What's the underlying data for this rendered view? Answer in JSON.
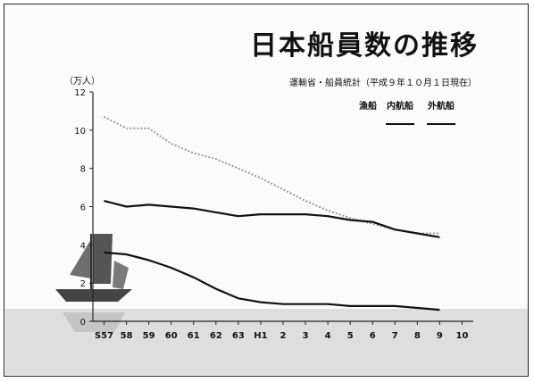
{
  "title": "日本船員数の推移",
  "source": "運輸省・船員統計（平成９年１０月１日現在）",
  "chart_data": {
    "type": "line",
    "title": "日本船員数の推移",
    "ylabel": "（万人）",
    "xlabel": "",
    "ylim": [
      0,
      12
    ],
    "yticks": [
      "0",
      "2",
      "4",
      "6",
      "8",
      "10",
      "12"
    ],
    "categories": [
      "S57",
      "58",
      "59",
      "60",
      "61",
      "62",
      "63",
      "H1",
      "2",
      "3",
      "4",
      "5",
      "6",
      "7",
      "8",
      "9",
      "10"
    ],
    "legend_position": "top-right",
    "series": [
      {
        "name": "漁船",
        "color": "#9a9a9a",
        "style": "dotted",
        "values": [
          10.7,
          10.1,
          10.1,
          9.3,
          8.8,
          8.5,
          8.0,
          7.5,
          6.9,
          6.3,
          5.8,
          5.4,
          5.1,
          4.8,
          4.6,
          4.6,
          null
        ]
      },
      {
        "name": "内航船",
        "color": "#111111",
        "style": "solid",
        "values": [
          6.3,
          6.0,
          6.1,
          6.0,
          5.9,
          5.7,
          5.5,
          5.6,
          5.6,
          5.6,
          5.5,
          5.3,
          5.2,
          4.8,
          4.6,
          4.4,
          null
        ]
      },
      {
        "name": "外航船",
        "color": "#111111",
        "style": "solid",
        "values": [
          3.6,
          3.5,
          3.2,
          2.8,
          2.3,
          1.7,
          1.2,
          1.0,
          0.9,
          0.9,
          0.9,
          0.8,
          0.8,
          0.8,
          0.7,
          0.6,
          null
        ]
      }
    ]
  }
}
